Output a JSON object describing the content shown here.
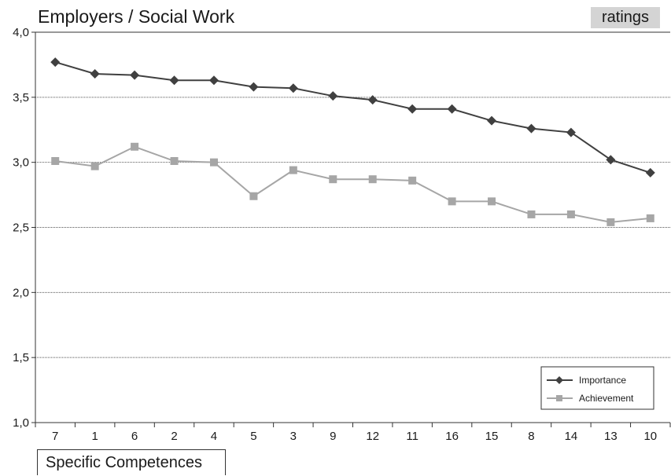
{
  "header": {
    "title": "Employers / Social Work",
    "badge": "ratings"
  },
  "chart_data": {
    "type": "line",
    "title": "Employers / Social Work",
    "xlabel": "Specific Competences",
    "ylabel": "",
    "categories": [
      "7",
      "1",
      "6",
      "2",
      "4",
      "5",
      "3",
      "9",
      "12",
      "11",
      "16",
      "15",
      "8",
      "14",
      "13",
      "10"
    ],
    "ylim": [
      1.0,
      4.0
    ],
    "yticks": [
      "1,0",
      "1,5",
      "2,0",
      "2,5",
      "3,0",
      "3,5",
      "4,0"
    ],
    "grid": "horizontal",
    "legend_position": "bottom-right",
    "series": [
      {
        "name": "Importance",
        "color": "#404040",
        "marker": "diamond",
        "values": [
          3.77,
          3.68,
          3.67,
          3.63,
          3.63,
          3.58,
          3.57,
          3.51,
          3.48,
          3.41,
          3.41,
          3.32,
          3.26,
          3.23,
          3.02,
          2.92
        ]
      },
      {
        "name": "Achievement",
        "color": "#a6a6a6",
        "marker": "square",
        "values": [
          3.01,
          2.97,
          3.12,
          3.01,
          3.0,
          2.74,
          2.94,
          2.87,
          2.87,
          2.86,
          2.7,
          2.7,
          2.6,
          2.6,
          2.54,
          2.57
        ]
      }
    ]
  }
}
